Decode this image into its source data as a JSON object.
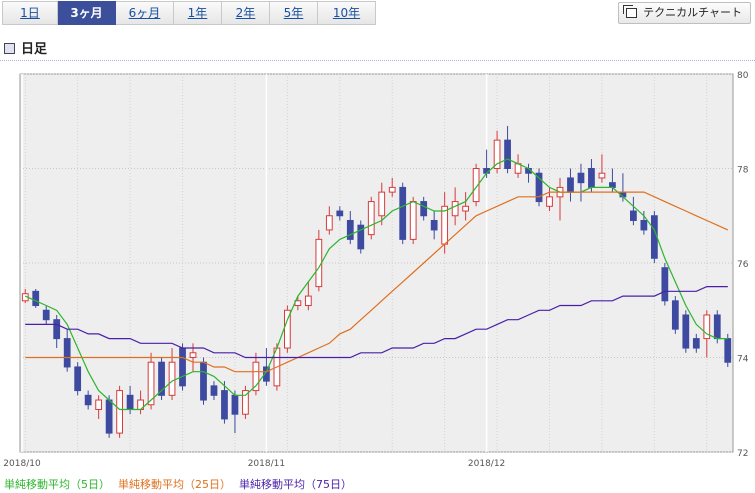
{
  "tabs": [
    {
      "label": "1日",
      "active": false
    },
    {
      "label": "3ヶ月",
      "active": true
    },
    {
      "label": "6ヶ月",
      "active": false
    },
    {
      "label": "1年",
      "active": false
    },
    {
      "label": "2年",
      "active": false
    },
    {
      "label": "5年",
      "active": false
    },
    {
      "label": "10年",
      "active": false
    }
  ],
  "technical_button": "テクニカルチャート",
  "section_title": "日足",
  "legend": [
    {
      "label": "単純移動平均（5日）",
      "color": "#2db52d"
    },
    {
      "label": "単純移動平均（25日）",
      "color": "#e0701f"
    },
    {
      "label": "単純移動平均（75日）",
      "color": "#4a1fa8"
    }
  ],
  "colors": {
    "up": "#d63b3b",
    "down": "#3d4aa0",
    "plot_bg": "#eeeeee"
  },
  "chart_data": {
    "type": "candlestick",
    "ylim": [
      72,
      80
    ],
    "yticks": [
      72,
      74,
      76,
      78,
      80
    ],
    "x_labels": [
      {
        "index": 0,
        "label": "2018/10"
      },
      {
        "index": 23,
        "label": "2018/11"
      },
      {
        "index": 44,
        "label": "2018/12"
      }
    ],
    "ohlc": [
      [
        75.2,
        75.45,
        75.15,
        75.35
      ],
      [
        75.4,
        75.45,
        75.05,
        75.1
      ],
      [
        75.0,
        75.1,
        74.7,
        74.8
      ],
      [
        74.8,
        74.9,
        74.2,
        74.4
      ],
      [
        74.4,
        74.6,
        73.7,
        73.8
      ],
      [
        73.8,
        73.9,
        73.2,
        73.3
      ],
      [
        73.2,
        73.3,
        72.9,
        73.0
      ],
      [
        72.9,
        73.2,
        72.7,
        73.1
      ],
      [
        73.1,
        73.2,
        72.3,
        72.4
      ],
      [
        72.4,
        73.4,
        72.3,
        73.3
      ],
      [
        73.2,
        73.4,
        72.8,
        72.9
      ],
      [
        72.9,
        73.3,
        72.8,
        73.1
      ],
      [
        73.0,
        74.1,
        72.9,
        73.9
      ],
      [
        73.9,
        74.0,
        73.1,
        73.2
      ],
      [
        73.2,
        74.2,
        73.1,
        73.9
      ],
      [
        74.2,
        74.3,
        73.3,
        73.4
      ],
      [
        74.0,
        74.3,
        73.7,
        74.1
      ],
      [
        73.9,
        74.0,
        73.0,
        73.1
      ],
      [
        73.4,
        73.5,
        73.1,
        73.2
      ],
      [
        73.3,
        73.5,
        72.6,
        72.7
      ],
      [
        73.2,
        73.3,
        72.4,
        72.8
      ],
      [
        72.8,
        73.4,
        72.7,
        73.3
      ],
      [
        73.3,
        74.1,
        73.2,
        73.9
      ],
      [
        73.8,
        74.2,
        73.4,
        73.5
      ],
      [
        73.4,
        74.3,
        73.3,
        74.2
      ],
      [
        74.2,
        75.1,
        74.1,
        75.0
      ],
      [
        75.1,
        75.3,
        75.0,
        75.2
      ],
      [
        75.1,
        75.6,
        75.0,
        75.3
      ],
      [
        75.5,
        76.7,
        75.4,
        76.5
      ],
      [
        76.7,
        77.2,
        76.6,
        77.0
      ],
      [
        77.1,
        77.2,
        76.9,
        77.0
      ],
      [
        76.9,
        77.1,
        76.4,
        76.5
      ],
      [
        76.8,
        76.9,
        76.2,
        76.3
      ],
      [
        76.6,
        77.4,
        76.5,
        77.3
      ],
      [
        77.0,
        77.7,
        76.8,
        77.5
      ],
      [
        77.5,
        77.8,
        77.4,
        77.6
      ],
      [
        77.6,
        77.7,
        76.4,
        76.5
      ],
      [
        76.5,
        77.4,
        76.4,
        77.3
      ],
      [
        77.3,
        77.4,
        76.9,
        77.0
      ],
      [
        76.9,
        77.1,
        76.5,
        76.7
      ],
      [
        76.4,
        77.5,
        76.2,
        77.2
      ],
      [
        77.0,
        77.6,
        76.8,
        77.3
      ],
      [
        77.1,
        77.5,
        76.9,
        77.2
      ],
      [
        77.3,
        78.1,
        77.2,
        78.0
      ],
      [
        78.0,
        78.4,
        77.8,
        77.9
      ],
      [
        78.0,
        78.8,
        77.9,
        78.6
      ],
      [
        78.6,
        78.9,
        77.9,
        78.0
      ],
      [
        77.9,
        78.3,
        77.8,
        78.1
      ],
      [
        78.0,
        78.1,
        77.7,
        77.9
      ],
      [
        77.9,
        78.0,
        77.2,
        77.3
      ],
      [
        77.2,
        77.6,
        77.1,
        77.4
      ],
      [
        77.4,
        77.8,
        76.9,
        77.6
      ],
      [
        77.8,
        78.0,
        77.3,
        77.5
      ],
      [
        77.9,
        78.1,
        77.3,
        77.7
      ],
      [
        78.0,
        78.2,
        77.5,
        77.6
      ],
      [
        77.8,
        78.3,
        77.7,
        77.9
      ],
      [
        77.7,
        78.0,
        77.5,
        77.6
      ],
      [
        77.5,
        77.9,
        77.3,
        77.4
      ],
      [
        77.1,
        77.4,
        76.8,
        76.9
      ],
      [
        76.9,
        77.1,
        76.6,
        76.7
      ],
      [
        77.0,
        77.1,
        76.0,
        76.1
      ],
      [
        75.9,
        76.0,
        75.1,
        75.2
      ],
      [
        75.2,
        75.3,
        74.5,
        74.6
      ],
      [
        74.9,
        75.0,
        74.1,
        74.2
      ],
      [
        74.4,
        74.5,
        74.1,
        74.2
      ],
      [
        74.4,
        75.0,
        74.0,
        74.9
      ],
      [
        74.9,
        75.0,
        74.3,
        74.4
      ],
      [
        74.4,
        74.5,
        73.8,
        73.9
      ]
    ],
    "series": [
      {
        "name": "単純移動平均（5日）",
        "values": [
          75.3,
          75.2,
          75.1,
          75.0,
          74.7,
          74.2,
          73.7,
          73.3,
          73.1,
          72.9,
          72.9,
          72.9,
          73.1,
          73.3,
          73.5,
          73.6,
          73.7,
          73.7,
          73.6,
          73.4,
          73.2,
          73.2,
          73.4,
          73.7,
          74.2,
          74.8,
          75.3,
          75.6,
          75.9,
          76.3,
          76.5,
          76.6,
          76.7,
          76.8,
          76.9,
          77.1,
          77.2,
          77.3,
          77.2,
          77.1,
          77.1,
          77.2,
          77.3,
          77.6,
          77.9,
          78.1,
          78.2,
          78.1,
          78.0,
          77.8,
          77.6,
          77.5,
          77.5,
          77.5,
          77.6,
          77.6,
          77.6,
          77.4,
          77.2,
          77.0,
          76.7,
          76.1,
          75.6,
          75.1,
          74.7,
          74.5,
          74.4,
          74.4
        ]
      },
      {
        "name": "単純移動平均（25日）",
        "values": [
          74.0,
          74.0,
          74.0,
          74.0,
          74.0,
          74.0,
          74.0,
          74.0,
          74.0,
          74.0,
          74.0,
          74.0,
          74.0,
          74.0,
          74.0,
          74.0,
          73.9,
          73.9,
          73.8,
          73.8,
          73.7,
          73.7,
          73.7,
          73.7,
          73.8,
          73.9,
          74.0,
          74.1,
          74.2,
          74.3,
          74.5,
          74.6,
          74.8,
          75.0,
          75.2,
          75.4,
          75.6,
          75.8,
          76.0,
          76.2,
          76.4,
          76.6,
          76.8,
          77.0,
          77.1,
          77.2,
          77.3,
          77.4,
          77.4,
          77.4,
          77.5,
          77.5,
          77.5,
          77.5,
          77.5,
          77.5,
          77.5,
          77.5,
          77.5,
          77.5,
          77.4,
          77.3,
          77.2,
          77.1,
          77.0,
          76.9,
          76.8,
          76.7
        ]
      },
      {
        "name": "単純移動平均（75日）",
        "values": [
          74.7,
          74.7,
          74.7,
          74.7,
          74.6,
          74.6,
          74.5,
          74.5,
          74.4,
          74.4,
          74.4,
          74.3,
          74.3,
          74.3,
          74.3,
          74.2,
          74.2,
          74.2,
          74.1,
          74.1,
          74.1,
          74.0,
          74.0,
          74.0,
          74.0,
          74.0,
          74.0,
          74.0,
          74.0,
          74.0,
          74.0,
          74.0,
          74.1,
          74.1,
          74.1,
          74.2,
          74.2,
          74.2,
          74.3,
          74.3,
          74.4,
          74.4,
          74.5,
          74.6,
          74.6,
          74.7,
          74.8,
          74.8,
          74.9,
          75.0,
          75.0,
          75.1,
          75.1,
          75.1,
          75.2,
          75.2,
          75.2,
          75.3,
          75.3,
          75.3,
          75.3,
          75.4,
          75.4,
          75.4,
          75.4,
          75.5,
          75.5,
          75.5
        ]
      }
    ]
  }
}
